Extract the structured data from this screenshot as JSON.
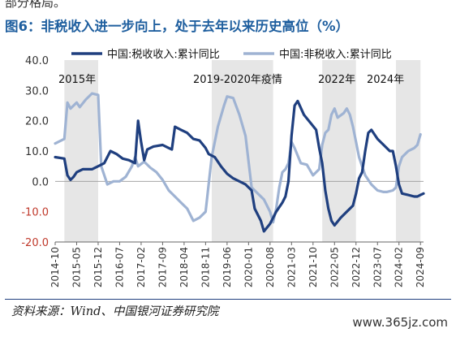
{
  "top_fragment": "部分格局。",
  "figure_title": "图6：非税收入进一步向上，处于去年以来历史高位（%）",
  "source": "资料来源：Wind、中国银河证券研究院",
  "watermark": "www.365jz.com",
  "colors": {
    "series_tax": "#1f3f7f",
    "series_nontax": "#9fb3d3",
    "shade": "#e6e6e6",
    "title": "#1f5f9f",
    "axis_text": "#333333",
    "negative_tick": "#c0392b"
  },
  "chart_data": {
    "type": "line",
    "title": "",
    "xlabel": "",
    "ylabel": "",
    "ylim": [
      -20,
      40
    ],
    "y_ticks": [
      "40.0",
      "30.0",
      "20.0",
      "10.0",
      "0.0",
      "-10.0",
      "-20.0"
    ],
    "x_tick_labels": [
      "2014-10",
      "2015-05",
      "2015-12",
      "2016-07",
      "2017-02",
      "2017-09",
      "2018-04",
      "2018-11",
      "2019-06",
      "2020-01",
      "2020-08",
      "2021-03",
      "2021-10",
      "2022-05",
      "2022-12",
      "2023-07",
      "2024-02",
      "2024-09"
    ],
    "legend_position": "top",
    "legend": [
      "中国:税收收入:累计同比",
      "中国:非税收入:累计同比"
    ],
    "shaded_periods": [
      {
        "label": "2015年",
        "start": "2015-01",
        "end": "2015-12"
      },
      {
        "label": "2019-2020年疫情",
        "start": "2019-01",
        "end": "2020-09"
      },
      {
        "label": "2022年",
        "start": "2022-01",
        "end": "2022-12"
      },
      {
        "label": "2024年",
        "start": "2024-01",
        "end": "2024-09"
      }
    ],
    "series": [
      {
        "name": "中国:税收收入:累计同比",
        "points": [
          [
            "2014-10",
            8
          ],
          [
            "2015-01",
            7.5
          ],
          [
            "2015-02",
            2
          ],
          [
            "2015-03",
            0.5
          ],
          [
            "2015-04",
            1.5
          ],
          [
            "2015-05",
            3
          ],
          [
            "2015-07",
            4
          ],
          [
            "2015-10",
            4
          ],
          [
            "2015-12",
            5
          ],
          [
            "2016-02",
            6
          ],
          [
            "2016-04",
            10
          ],
          [
            "2016-06",
            9
          ],
          [
            "2016-08",
            7.5
          ],
          [
            "2016-10",
            7
          ],
          [
            "2016-12",
            6
          ],
          [
            "2017-01",
            20
          ],
          [
            "2017-02",
            13
          ],
          [
            "2017-03",
            7
          ],
          [
            "2017-04",
            10.5
          ],
          [
            "2017-06",
            11.5
          ],
          [
            "2017-09",
            12
          ],
          [
            "2017-11",
            11
          ],
          [
            "2017-12",
            10.5
          ],
          [
            "2018-01",
            18
          ],
          [
            "2018-03",
            17
          ],
          [
            "2018-05",
            16
          ],
          [
            "2018-07",
            14
          ],
          [
            "2018-09",
            13.5
          ],
          [
            "2018-11",
            11
          ],
          [
            "2018-12",
            9
          ],
          [
            "2019-02",
            8
          ],
          [
            "2019-04",
            5
          ],
          [
            "2019-06",
            2.5
          ],
          [
            "2019-08",
            1
          ],
          [
            "2019-10",
            0
          ],
          [
            "2019-12",
            -1
          ],
          [
            "2020-02",
            -3
          ],
          [
            "2020-03",
            -9
          ],
          [
            "2020-05",
            -13
          ],
          [
            "2020-06",
            -16.5
          ],
          [
            "2020-08",
            -14
          ],
          [
            "2020-10",
            -10
          ],
          [
            "2020-12",
            -7
          ],
          [
            "2021-01",
            -5
          ],
          [
            "2021-02",
            0
          ],
          [
            "2021-03",
            15
          ],
          [
            "2021-04",
            25
          ],
          [
            "2021-05",
            26.5
          ],
          [
            "2021-07",
            22
          ],
          [
            "2021-09",
            19.5
          ],
          [
            "2021-11",
            17
          ],
          [
            "2021-12",
            11
          ],
          [
            "2022-01",
            6
          ],
          [
            "2022-02",
            -3
          ],
          [
            "2022-03",
            -9
          ],
          [
            "2022-04",
            -13
          ],
          [
            "2022-05",
            -14.5
          ],
          [
            "2022-07",
            -12
          ],
          [
            "2022-09",
            -10
          ],
          [
            "2022-11",
            -8
          ],
          [
            "2022-12",
            -4
          ],
          [
            "2023-01",
            1
          ],
          [
            "2023-02",
            3
          ],
          [
            "2023-03",
            10
          ],
          [
            "2023-04",
            16
          ],
          [
            "2023-05",
            17
          ],
          [
            "2023-07",
            14
          ],
          [
            "2023-09",
            12
          ],
          [
            "2023-11",
            10
          ],
          [
            "2023-12",
            10
          ],
          [
            "2024-01",
            5
          ],
          [
            "2024-02",
            -1
          ],
          [
            "2024-03",
            -4
          ],
          [
            "2024-05",
            -4.5
          ],
          [
            "2024-07",
            -5
          ],
          [
            "2024-08",
            -5
          ],
          [
            "2024-09",
            -4.5
          ],
          [
            "2024-10",
            -4
          ]
        ]
      },
      {
        "name": "中国:非税收入:累计同比",
        "points": [
          [
            "2014-10",
            12.5
          ],
          [
            "2015-01",
            14
          ],
          [
            "2015-02",
            26
          ],
          [
            "2015-03",
            24
          ],
          [
            "2015-04",
            25
          ],
          [
            "2015-05",
            26
          ],
          [
            "2015-06",
            24.5
          ],
          [
            "2015-08",
            27
          ],
          [
            "2015-10",
            29
          ],
          [
            "2015-12",
            28.5
          ],
          [
            "2016-01",
            5
          ],
          [
            "2016-03",
            -1
          ],
          [
            "2016-05",
            0
          ],
          [
            "2016-07",
            0
          ],
          [
            "2016-09",
            1.5
          ],
          [
            "2016-11",
            5
          ],
          [
            "2016-12",
            8
          ],
          [
            "2017-01",
            5
          ],
          [
            "2017-03",
            6.5
          ],
          [
            "2017-05",
            4.5
          ],
          [
            "2017-07",
            3
          ],
          [
            "2017-09",
            0.5
          ],
          [
            "2017-11",
            -3
          ],
          [
            "2018-01",
            -5
          ],
          [
            "2018-03",
            -7
          ],
          [
            "2018-05",
            -9
          ],
          [
            "2018-07",
            -13
          ],
          [
            "2018-09",
            -12
          ],
          [
            "2018-11",
            -10
          ],
          [
            "2019-01",
            8
          ],
          [
            "2019-03",
            18
          ],
          [
            "2019-05",
            25
          ],
          [
            "2019-06",
            28
          ],
          [
            "2019-08",
            27.5
          ],
          [
            "2019-10",
            22
          ],
          [
            "2019-12",
            15
          ],
          [
            "2020-02",
            -2
          ],
          [
            "2020-04",
            -4
          ],
          [
            "2020-06",
            -6
          ],
          [
            "2020-08",
            -10
          ],
          [
            "2020-09",
            -13.5
          ],
          [
            "2020-10",
            -9
          ],
          [
            "2020-11",
            -2
          ],
          [
            "2020-12",
            3
          ],
          [
            "2021-01",
            4
          ],
          [
            "2021-02",
            6
          ],
          [
            "2021-03",
            13
          ],
          [
            "2021-04",
            11
          ],
          [
            "2021-06",
            6
          ],
          [
            "2021-08",
            5.5
          ],
          [
            "2021-10",
            2
          ],
          [
            "2021-12",
            4
          ],
          [
            "2022-01",
            12
          ],
          [
            "2022-02",
            16
          ],
          [
            "2022-03",
            17
          ],
          [
            "2022-04",
            22
          ],
          [
            "2022-05",
            24
          ],
          [
            "2022-06",
            21
          ],
          [
            "2022-08",
            22.5
          ],
          [
            "2022-09",
            24
          ],
          [
            "2022-10",
            22
          ],
          [
            "2022-11",
            18
          ],
          [
            "2022-12",
            13
          ],
          [
            "2023-01",
            8
          ],
          [
            "2023-03",
            2
          ],
          [
            "2023-05",
            -1
          ],
          [
            "2023-07",
            -3
          ],
          [
            "2023-09",
            -3.5
          ],
          [
            "2023-10",
            -3.5
          ],
          [
            "2023-12",
            -3
          ],
          [
            "2024-01",
            -2
          ],
          [
            "2024-02",
            5
          ],
          [
            "2024-03",
            8
          ],
          [
            "2024-05",
            10
          ],
          [
            "2024-07",
            11
          ],
          [
            "2024-08",
            12
          ],
          [
            "2024-09",
            15.5
          ]
        ]
      }
    ]
  }
}
